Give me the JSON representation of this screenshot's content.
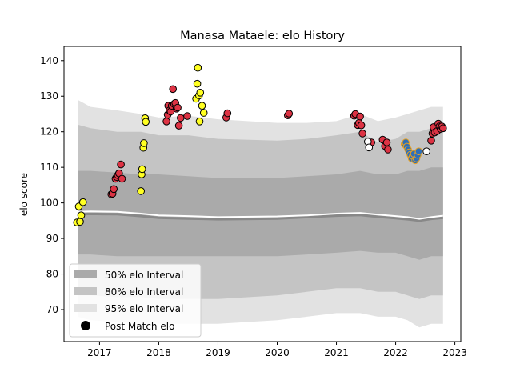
{
  "chart_data": {
    "type": "scatter",
    "title": "Manasa Mataele: elo History",
    "xlabel": "",
    "ylabel": "elo score",
    "x_ticks": [
      2017,
      2018,
      2019,
      2020,
      2021,
      2022,
      2023
    ],
    "y_ticks": [
      70,
      80,
      90,
      100,
      110,
      120,
      130,
      140
    ],
    "xlim": [
      2016.4,
      2023.1
    ],
    "ylim": [
      61,
      144
    ],
    "legend": {
      "placement": "lower-left",
      "entries": [
        {
          "label": "50% elo Interval",
          "color": "#aaaaaa"
        },
        {
          "label": "80% elo Interval",
          "color": "#c4c4c4"
        },
        {
          "label": "95% elo Interval",
          "color": "#e2e2e2"
        },
        {
          "label": "Post Match elo",
          "color": "#000000"
        }
      ]
    },
    "bands": {
      "x": [
        2016.63,
        2016.85,
        2017.3,
        2017.7,
        2018.0,
        2018.5,
        2019.0,
        2020.0,
        2020.5,
        2021.0,
        2021.4,
        2021.7,
        2022.0,
        2022.2,
        2022.4,
        2022.6,
        2022.8
      ],
      "p95_upper": [
        129,
        127,
        126,
        125,
        124,
        124.5,
        123.5,
        122.5,
        122.5,
        123,
        125,
        123,
        124,
        125,
        126,
        127,
        127
      ],
      "p95_lower": [
        68,
        67,
        66.5,
        66,
        66,
        66,
        66,
        67,
        68,
        69,
        69,
        68,
        68,
        67,
        65,
        66,
        66
      ],
      "p80_upper": [
        122,
        121,
        120,
        120,
        119,
        119,
        118,
        117.5,
        118,
        119,
        120,
        117,
        118,
        120,
        120,
        121,
        121
      ],
      "p80_lower": [
        74,
        74,
        73.5,
        73.5,
        73,
        73,
        73,
        74,
        75,
        76,
        76,
        75,
        75,
        74,
        73,
        74,
        74
      ],
      "p50_upper": [
        109,
        109,
        108.5,
        108,
        108,
        107.5,
        107,
        107,
        107.5,
        108,
        109,
        108,
        108,
        109,
        109,
        110,
        110
      ],
      "p50_lower": [
        85.5,
        85.5,
        85,
        85,
        85,
        85,
        85,
        85,
        85.5,
        86,
        86.5,
        86,
        86,
        85,
        84,
        85,
        85
      ],
      "mean": [
        97.5,
        97.6,
        97.5,
        97,
        96.5,
        96.3,
        96,
        96.2,
        96.5,
        97,
        97.2,
        96.7,
        96.3,
        96,
        95.5,
        96,
        96.4
      ],
      "median": [
        96.8,
        96.9,
        96.8,
        96.3,
        95.8,
        95.6,
        95.4,
        95.6,
        96,
        96.4,
        96.6,
        96.1,
        95.7,
        95.4,
        95,
        95.5,
        95.8
      ]
    },
    "series": [
      {
        "color": "#ffff22",
        "points": [
          [
            2016.62,
            94.5
          ],
          [
            2016.65,
            99
          ],
          [
            2016.67,
            94.7
          ],
          [
            2016.69,
            96.5
          ],
          [
            2016.72,
            100.2
          ],
          [
            2017.7,
            103.3
          ],
          [
            2017.71,
            108
          ],
          [
            2017.72,
            109.5
          ],
          [
            2017.74,
            115.5
          ],
          [
            2017.75,
            116.8
          ],
          [
            2017.77,
            123.8
          ],
          [
            2017.78,
            122.8
          ],
          [
            2018.63,
            129.3
          ],
          [
            2018.65,
            133.5
          ],
          [
            2018.66,
            138
          ],
          [
            2018.68,
            130.2
          ],
          [
            2018.69,
            122.9
          ],
          [
            2018.7,
            131
          ],
          [
            2018.73,
            127.3
          ],
          [
            2018.76,
            125.3
          ]
        ]
      },
      {
        "color": "#dd3344",
        "points": [
          [
            2017.2,
            102.4
          ],
          [
            2017.22,
            102.6
          ],
          [
            2017.24,
            103.9
          ],
          [
            2017.27,
            106.8
          ],
          [
            2017.29,
            107.3
          ],
          [
            2017.31,
            107.8
          ],
          [
            2017.33,
            108.3
          ],
          [
            2017.36,
            110.8
          ],
          [
            2017.38,
            106.8
          ],
          [
            2018.13,
            122.9
          ],
          [
            2018.15,
            124.8
          ],
          [
            2018.16,
            127.3
          ],
          [
            2018.18,
            126.0
          ],
          [
            2018.2,
            125.7
          ],
          [
            2018.22,
            127.3
          ],
          [
            2018.24,
            132
          ],
          [
            2018.26,
            127.8
          ],
          [
            2018.28,
            128.1
          ],
          [
            2018.3,
            126.5
          ],
          [
            2018.32,
            126.8
          ],
          [
            2018.34,
            121.7
          ],
          [
            2018.37,
            123.9
          ],
          [
            2018.48,
            124.4
          ],
          [
            2019.14,
            124
          ],
          [
            2019.16,
            125.2
          ],
          [
            2020.18,
            124.6
          ],
          [
            2020.2,
            125.1
          ],
          [
            2021.3,
            124.5
          ],
          [
            2021.32,
            125
          ],
          [
            2021.36,
            121.9
          ],
          [
            2021.38,
            122.5
          ],
          [
            2021.4,
            124.3
          ],
          [
            2021.42,
            121.8
          ],
          [
            2021.44,
            119.5
          ],
          [
            2021.59,
            117
          ],
          [
            2021.78,
            117.8
          ],
          [
            2021.82,
            116
          ],
          [
            2021.85,
            117
          ],
          [
            2021.87,
            115
          ],
          [
            2022.6,
            117.5
          ],
          [
            2022.62,
            119.5
          ],
          [
            2022.64,
            121.3
          ],
          [
            2022.66,
            119.8
          ],
          [
            2022.7,
            120.2
          ],
          [
            2022.72,
            122.3
          ],
          [
            2022.74,
            121.5
          ],
          [
            2022.76,
            120.8
          ],
          [
            2022.78,
            121.5
          ],
          [
            2022.8,
            121
          ]
        ]
      },
      {
        "color": "#ffffff",
        "points": [
          [
            2021.53,
            117.2
          ],
          [
            2021.55,
            115.6
          ],
          [
            2022.52,
            114.5
          ]
        ]
      },
      {
        "color": "#2e6fb7",
        "edge": "#e8a020",
        "points": [
          [
            2022.15,
            116.5
          ],
          [
            2022.17,
            117
          ],
          [
            2022.19,
            115.8
          ],
          [
            2022.21,
            115
          ],
          [
            2022.23,
            114.2
          ],
          [
            2022.25,
            113.5
          ],
          [
            2022.27,
            112.5
          ],
          [
            2022.29,
            113.2
          ],
          [
            2022.31,
            113.8
          ],
          [
            2022.33,
            112
          ],
          [
            2022.35,
            112.5
          ],
          [
            2022.37,
            113.5
          ],
          [
            2022.39,
            114.5
          ]
        ]
      }
    ]
  }
}
